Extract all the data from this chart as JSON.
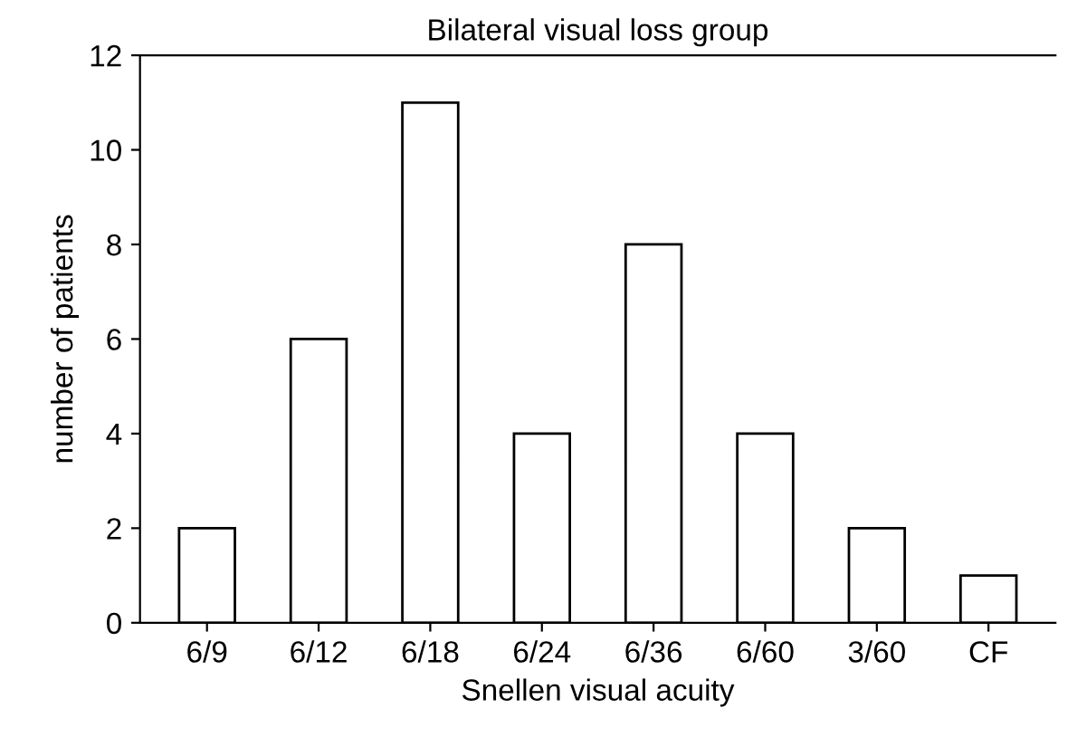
{
  "chart_data": {
    "type": "bar",
    "title": "Bilateral visual loss group",
    "xlabel": "Snellen visual acuity",
    "ylabel": "number of patients",
    "categories": [
      "6/9",
      "6/12",
      "6/18",
      "6/24",
      "6/36",
      "6/60",
      "3/60",
      "CF"
    ],
    "values": [
      2,
      6,
      11,
      4,
      8,
      4,
      2,
      1
    ],
    "color": "#ffffff",
    "ylim": [
      0,
      12
    ],
    "yticks": [
      0,
      2,
      4,
      6,
      8,
      10,
      12
    ],
    "grid": false,
    "legend": false
  }
}
